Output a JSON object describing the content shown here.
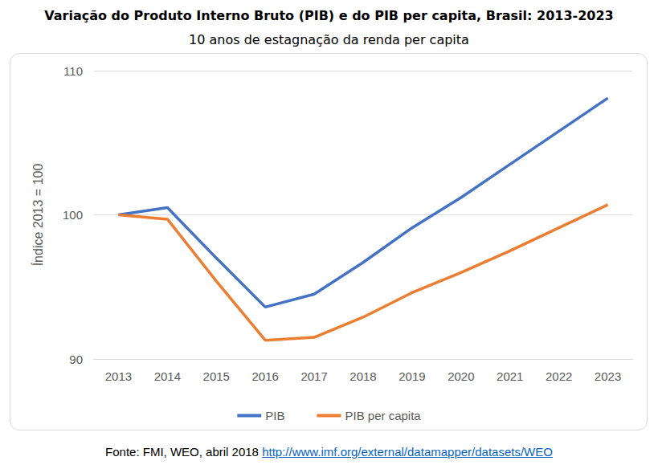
{
  "chart_data": {
    "type": "line",
    "title": "Variação do Produto Interno Bruto (PIB) e do PIB per capita, Brasil: 2013-2023",
    "subtitle": "10 anos de estagnação da renda per capita",
    "y_label": "Índice 2013 = 100",
    "source": "Fonte: FMI, WEO, abril 2018",
    "source_url": "http://www.imf.org/external/datamapper/datasets/WEO",
    "categories": [
      "2013",
      "2014",
      "2015",
      "2016",
      "2017",
      "2018",
      "2019",
      "2020",
      "2021",
      "2022",
      "2023"
    ],
    "series": [
      {
        "name": "PIB",
        "color": "#4472c4",
        "values": [
          100,
          100.5,
          97.0,
          93.6,
          94.5,
          96.7,
          99.1,
          101.2,
          103.5,
          105.8,
          108.1
        ]
      },
      {
        "name": "PIB per capita",
        "color": "#ed7d31",
        "values": [
          100,
          99.7,
          95.4,
          91.3,
          91.5,
          92.9,
          94.6,
          96.0,
          97.5,
          99.1,
          100.7
        ]
      }
    ],
    "ylim": [
      90,
      110
    ],
    "yticks": [
      90,
      100,
      110
    ],
    "grid": true,
    "legend": "bottom"
  }
}
